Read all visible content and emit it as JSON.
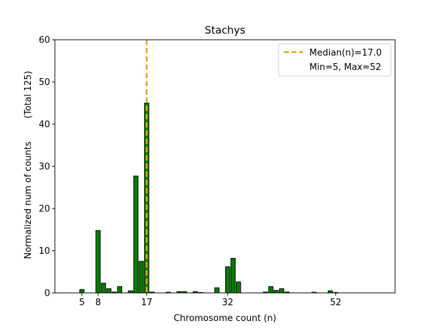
{
  "chart_data": {
    "type": "bar",
    "title": "Stachys",
    "xlabel": "Chromosome count (n)",
    "ylabel_main": "Normalized num of counts",
    "ylabel_total": "(Total 125)",
    "xlim": [
      0,
      63
    ],
    "ylim": [
      0,
      60
    ],
    "xticks": [
      5,
      8,
      17,
      32,
      52
    ],
    "yticks": [
      0,
      10,
      20,
      30,
      40,
      50,
      60
    ],
    "bars": [
      {
        "x": 5,
        "y": 0.8
      },
      {
        "x": 8,
        "y": 14.8
      },
      {
        "x": 9,
        "y": 2.3
      },
      {
        "x": 10,
        "y": 1.0
      },
      {
        "x": 11,
        "y": 0.2
      },
      {
        "x": 12,
        "y": 1.5
      },
      {
        "x": 14,
        "y": 0.5
      },
      {
        "x": 15,
        "y": 27.7
      },
      {
        "x": 16,
        "y": 7.5
      },
      {
        "x": 17,
        "y": 45.0
      },
      {
        "x": 18,
        "y": 0.2
      },
      {
        "x": 21,
        "y": 0.15
      },
      {
        "x": 23,
        "y": 0.3
      },
      {
        "x": 24,
        "y": 0.3
      },
      {
        "x": 26,
        "y": 0.3
      },
      {
        "x": 27,
        "y": 0.1
      },
      {
        "x": 30,
        "y": 1.2
      },
      {
        "x": 32,
        "y": 6.2
      },
      {
        "x": 33,
        "y": 8.2
      },
      {
        "x": 34,
        "y": 2.6
      },
      {
        "x": 39,
        "y": 0.2
      },
      {
        "x": 40,
        "y": 1.5
      },
      {
        "x": 41,
        "y": 0.6
      },
      {
        "x": 42,
        "y": 1.0
      },
      {
        "x": 43,
        "y": 0.2
      },
      {
        "x": 48,
        "y": 0.15
      },
      {
        "x": 51,
        "y": 0.5
      },
      {
        "x": 52,
        "y": 0.1
      }
    ],
    "bar_color": "#007f00",
    "median": {
      "x": 17.0,
      "color": "#e6a817"
    },
    "legend": {
      "position": "top-right",
      "median_label": "Median(n)=17.0",
      "range_label": "Min=5, Max=52"
    }
  }
}
